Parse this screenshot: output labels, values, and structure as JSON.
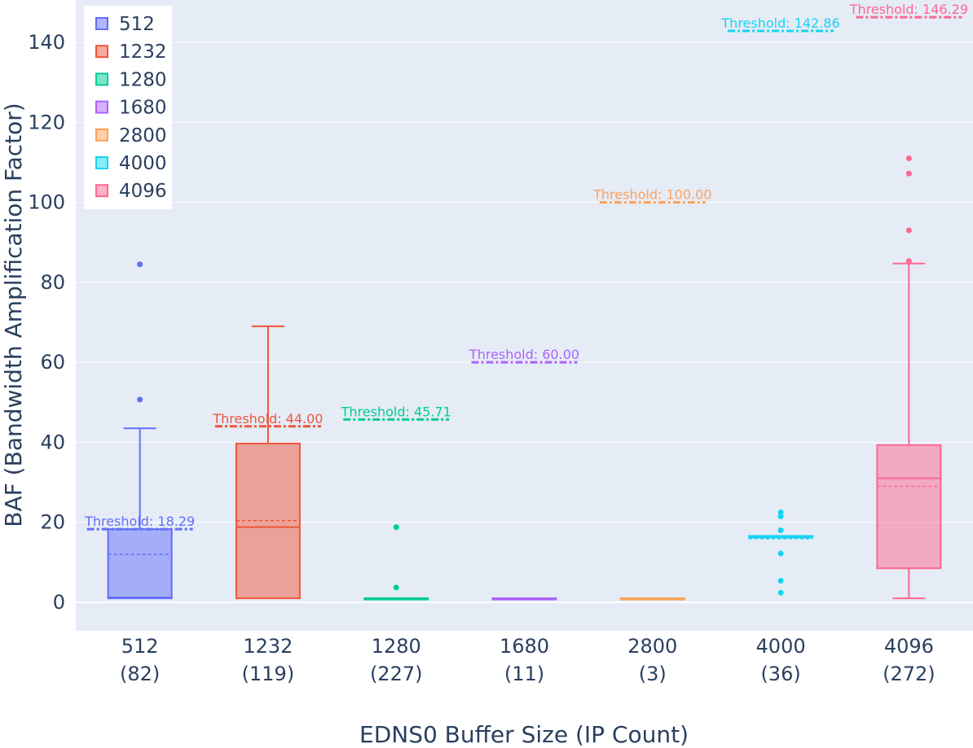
{
  "chart_data": {
    "type": "box",
    "xlabel": "EDNS0 Buffer Size (IP Count)",
    "ylabel": "BAF (Bandwidth Amplification Factor)",
    "ylim": [
      -7,
      150
    ],
    "yticks": [
      0,
      20,
      40,
      60,
      80,
      100,
      120,
      140
    ],
    "grid": true,
    "legend_position": "top-left",
    "background": "#e5ecf6",
    "series": [
      {
        "name": "512",
        "category_line1": "512",
        "category_line2": "(82)",
        "color": "#636efa",
        "min": 1,
        "q1": 1,
        "median": 1.2,
        "q3": 18.29,
        "max": 43.5,
        "mean": 12,
        "outliers": [
          50.7,
          84.5
        ],
        "threshold": 18.29,
        "threshold_label": "Threshold: 18.29"
      },
      {
        "name": "1232",
        "category_line1": "1232",
        "category_line2": "(119)",
        "color": "#ef553b",
        "min": 1,
        "q1": 1,
        "median": 18.8,
        "q3": 39.7,
        "max": 69,
        "mean": 20.4,
        "outliers": [],
        "threshold": 44.0,
        "threshold_label": "Threshold: 44.00"
      },
      {
        "name": "1280",
        "category_line1": "1280",
        "category_line2": "(227)",
        "color": "#00cc96",
        "min": 1,
        "q1": 1,
        "median": 1,
        "q3": 1,
        "max": 1,
        "mean": 1.1,
        "outliers": [
          3.7,
          18.8
        ],
        "threshold": 45.71,
        "threshold_label": "Threshold: 45.71"
      },
      {
        "name": "1680",
        "category_line1": "1680",
        "category_line2": "(11)",
        "color": "#ab63fa",
        "min": 1,
        "q1": 1,
        "median": 1,
        "q3": 1,
        "max": 1,
        "mean": 1,
        "outliers": [],
        "threshold": 60.0,
        "threshold_label": "Threshold: 60.00"
      },
      {
        "name": "2800",
        "category_line1": "2800",
        "category_line2": "(3)",
        "color": "#ffa15a",
        "min": 1,
        "q1": 1,
        "median": 1,
        "q3": 1,
        "max": 1,
        "mean": 1,
        "outliers": [],
        "threshold": 100.0,
        "threshold_label": "Threshold: 100.00"
      },
      {
        "name": "4000",
        "category_line1": "4000",
        "category_line2": "(36)",
        "color": "#19d3f3",
        "min": 16.2,
        "q1": 16.2,
        "median": 16.2,
        "q3": 16.6,
        "max": 16.6,
        "mean": 15.9,
        "outliers": [
          2.4,
          5.4,
          12.2,
          18.0,
          21.5,
          22.5
        ],
        "threshold": 142.86,
        "threshold_label": "Threshold: 142.86"
      },
      {
        "name": "4096",
        "category_line1": "4096",
        "category_line2": "(272)",
        "color": "#ff6692",
        "min": 1,
        "q1": 8.5,
        "median": 31,
        "q3": 39.3,
        "max": 84.7,
        "mean": 29,
        "outliers": [
          85.3,
          93,
          107.2,
          111
        ],
        "threshold": 146.29,
        "threshold_label": "Threshold: 146.29"
      }
    ]
  }
}
